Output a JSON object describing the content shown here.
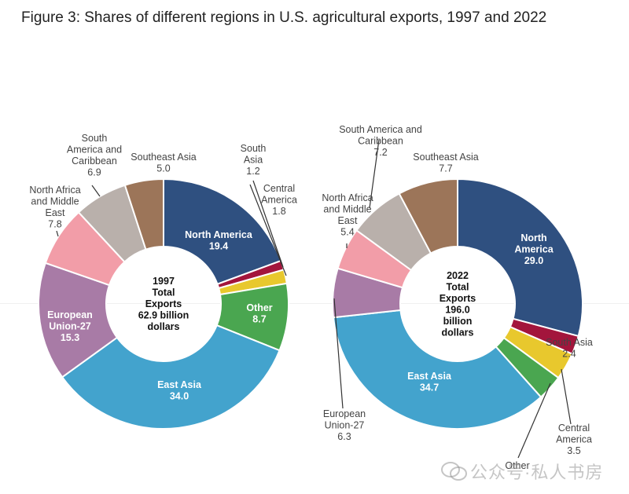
{
  "figure_title": "Figure 3: Shares of different regions in U.S. agricultural exports, 1997 and 2022",
  "watermark": "公众号·私人书房",
  "chart_data": [
    {
      "type": "pie",
      "subtype": "donut",
      "title": "1997 Total Exports 62.9 billion dollars",
      "center_label": [
        "1997",
        "Total",
        "Exports",
        "62.9 billion",
        "dollars"
      ],
      "unit": "percent",
      "categories": [
        "North America",
        "South Asia",
        "Central America",
        "Other",
        "East Asia",
        "European Union-27",
        "North Africa and Middle East",
        "South America and Caribbean",
        "Southeast Asia"
      ],
      "values": [
        19.4,
        1.2,
        1.8,
        8.7,
        34.0,
        15.3,
        7.8,
        6.9,
        5.0
      ],
      "colors": [
        "#2f5080",
        "#a3153c",
        "#e8c82d",
        "#4aa650",
        "#43a3cd",
        "#a87ba6",
        "#f29da8",
        "#b9b0ab",
        "#9c7559"
      ],
      "labels": [
        {
          "lines": [
            "North America",
            "19.4"
          ],
          "inside": true
        },
        {
          "lines": [
            "South",
            "Asia",
            "1.2"
          ],
          "inside": false
        },
        {
          "lines": [
            "Central",
            "America",
            "1.8"
          ],
          "inside": false
        },
        {
          "lines": [
            "Other",
            "8.7"
          ],
          "inside": true
        },
        {
          "lines": [
            "East Asia",
            "34.0"
          ],
          "inside": true
        },
        {
          "lines": [
            "European",
            "Union-27",
            "15.3"
          ],
          "inside": true
        },
        {
          "lines": [
            "North Africa",
            "and Middle",
            "East",
            "7.8"
          ],
          "inside": false
        },
        {
          "lines": [
            "South",
            "America and",
            "Caribbean",
            "6.9"
          ],
          "inside": false
        },
        {
          "lines": [
            "Southeast Asia",
            "5.0"
          ],
          "inside": false
        }
      ]
    },
    {
      "type": "pie",
      "subtype": "donut",
      "title": "2022 Total Exports 196.0 billion dollars",
      "center_label": [
        "2022",
        "Total",
        "Exports",
        "196.0",
        "billion",
        "dollars"
      ],
      "unit": "percent",
      "categories": [
        "North America",
        "South Asia",
        "Central America",
        "Other",
        "East Asia",
        "European Union-27",
        "North Africa and Middle East",
        "South America and Caribbean",
        "Southeast Asia"
      ],
      "values": [
        29.0,
        2.4,
        3.5,
        3.3,
        34.7,
        6.3,
        5.4,
        7.2,
        7.7
      ],
      "colors": [
        "#2f5080",
        "#a3153c",
        "#e8c82d",
        "#4aa650",
        "#43a3cd",
        "#a87ba6",
        "#f29da8",
        "#b9b0ab",
        "#9c7559"
      ],
      "labels": [
        {
          "lines": [
            "North",
            "America",
            "29.0"
          ],
          "inside": true
        },
        {
          "lines": [
            "South Asia",
            "2.4"
          ],
          "inside": false
        },
        {
          "lines": [
            "Central",
            "America",
            "3.5"
          ],
          "inside": false
        },
        {
          "lines": [
            "Other"
          ],
          "inside": false
        },
        {
          "lines": [
            "East Asia",
            "34.7"
          ],
          "inside": true
        },
        {
          "lines": [
            "European",
            "Union-27",
            "6.3"
          ],
          "inside": false
        },
        {
          "lines": [
            "North Africa",
            "and Middle",
            "East",
            "5.4"
          ],
          "inside": false
        },
        {
          "lines": [
            "South America and",
            "Caribbean",
            "7.2"
          ],
          "inside": false
        },
        {
          "lines": [
            "Southeast Asia",
            "7.7"
          ],
          "inside": false
        }
      ]
    }
  ]
}
